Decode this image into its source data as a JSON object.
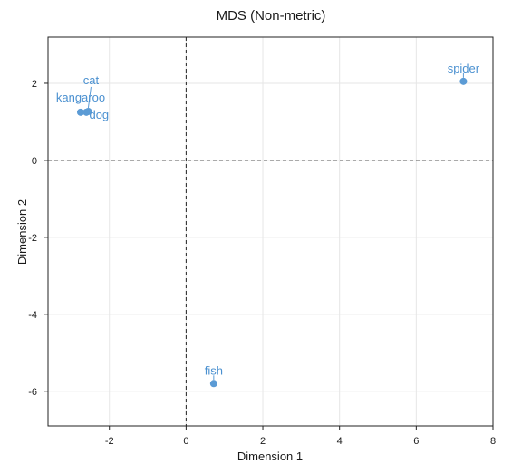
{
  "chart_data": {
    "type": "scatter",
    "title": "MDS (Non-metric)",
    "xlabel": "Dimension 1",
    "ylabel": "Dimension 2",
    "xlim": [
      -3.6,
      8.0
    ],
    "ylim": [
      -6.9,
      3.2
    ],
    "xticks": [
      -2,
      0,
      2,
      4,
      6,
      8
    ],
    "yticks": [
      -6,
      -4,
      -2,
      0,
      2
    ],
    "x_tick_labels": [
      "-2",
      "0",
      "2",
      "4",
      "6",
      "8"
    ],
    "y_tick_labels": [
      "-6",
      "-4",
      "-2",
      "0",
      "2"
    ],
    "reference_lines": {
      "x": 0,
      "y": 0,
      "style": "dashed"
    },
    "grid": true,
    "point_color": "#5b9bd5",
    "label_color": "#4a90d0",
    "points": [
      {
        "label": "cat",
        "x": -2.55,
        "y": 1.27
      },
      {
        "label": "kangaroo",
        "x": -2.75,
        "y": 1.25
      },
      {
        "label": "dog",
        "x": -2.6,
        "y": 1.25
      },
      {
        "label": "spider",
        "x": 7.23,
        "y": 2.05
      },
      {
        "label": "fish",
        "x": 0.72,
        "y": -5.8
      }
    ]
  }
}
